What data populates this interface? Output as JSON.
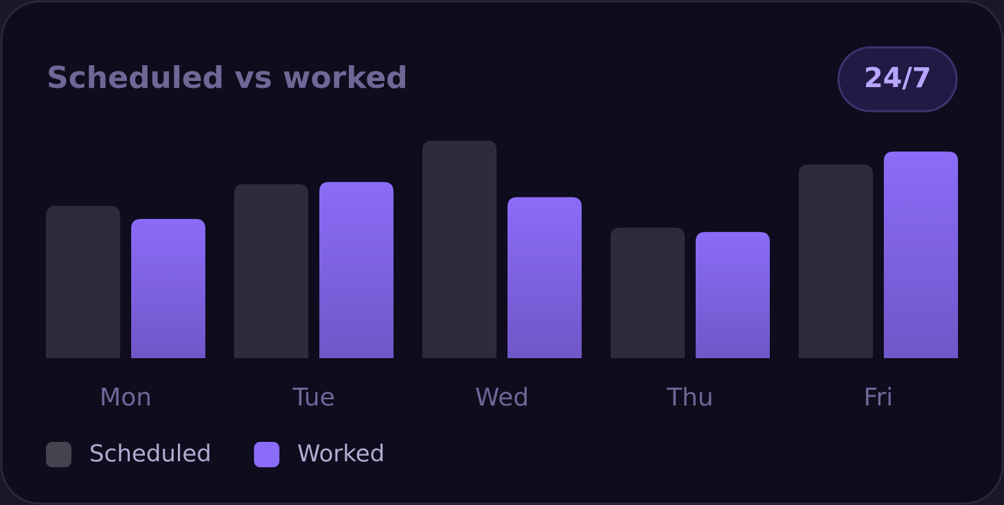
{
  "chart_data": {
    "type": "bar",
    "title": "Scheduled vs worked",
    "badge": "24/7",
    "categories": [
      "Mon",
      "Tue",
      "Wed",
      "Thu",
      "Fri"
    ],
    "series": [
      {
        "name": "Scheduled",
        "color": "#2e2b3c",
        "legend_color": "#45434f",
        "values": [
          7.0,
          8.0,
          10.0,
          6.0,
          8.9
        ]
      },
      {
        "name": "Worked",
        "color": "#8b6cf8",
        "legend_color": "#8b6cf8",
        "values": [
          6.4,
          8.1,
          7.4,
          5.8,
          9.5
        ]
      }
    ],
    "ylim": [
      0,
      10
    ],
    "grid": false
  }
}
